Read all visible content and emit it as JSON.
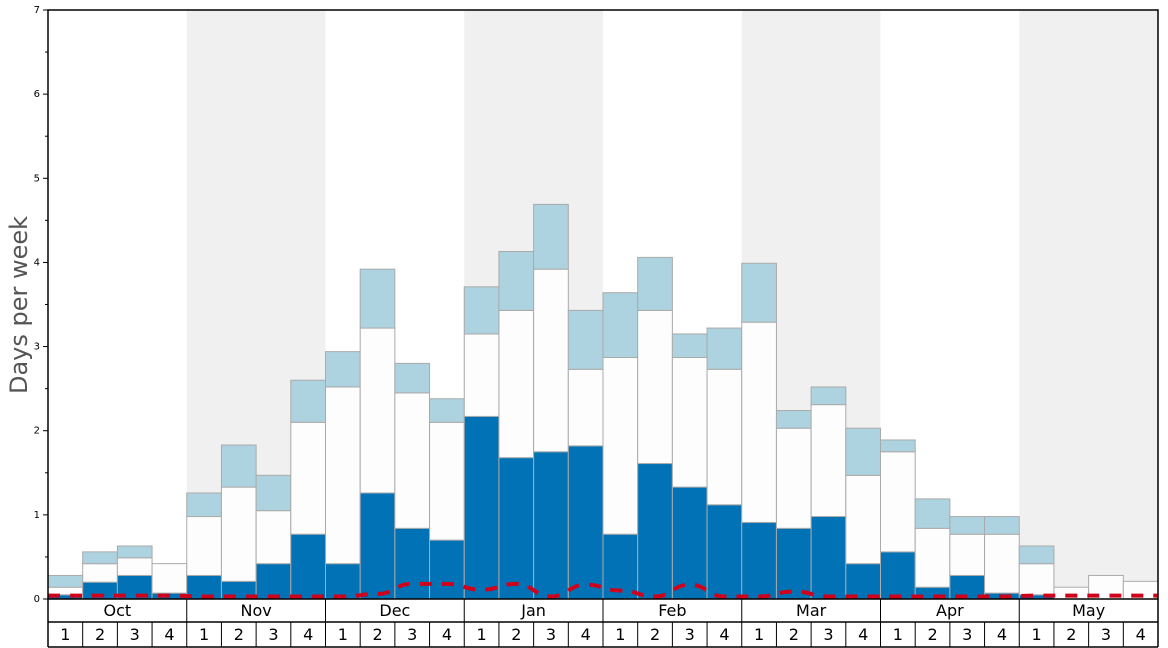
{
  "chart_data": {
    "type": "bar",
    "stacked": true,
    "ylabel": "Days per week",
    "ylim": [
      0,
      7
    ],
    "yticks": [
      0,
      1,
      2,
      3,
      4,
      5,
      6,
      7
    ],
    "grid": false,
    "alternate_month_shading": true,
    "months": [
      "Oct",
      "Nov",
      "Dec",
      "Jan",
      "Feb",
      "Mar",
      "Apr",
      "May"
    ],
    "weeks_per_month": [
      "1",
      "2",
      "3",
      "4"
    ],
    "colors": {
      "dark": "#0072b5",
      "white": "#fdfdfd",
      "light": "#aed3e0",
      "dashed_line": "#d0021b",
      "shade": "#f0f0f1",
      "bar_edge": "#aaaaaa"
    },
    "series": [
      {
        "values": [
          0.05,
          0.2,
          0.28,
          0.07,
          0.28,
          0.21,
          0.42,
          0.77,
          0.42,
          1.26,
          0.84,
          0.7,
          2.17,
          1.68,
          1.75,
          1.82,
          0.77,
          1.61,
          1.33,
          1.12,
          0.91,
          0.84,
          0.98,
          0.42,
          0.56,
          0.14,
          0.28,
          0.07,
          0.05,
          0.0,
          0.0,
          0.0
        ]
      },
      {
        "values": [
          0.09,
          0.22,
          0.21,
          0.35,
          0.7,
          1.12,
          0.63,
          1.33,
          2.1,
          1.96,
          1.61,
          1.4,
          0.98,
          1.75,
          2.17,
          0.91,
          2.1,
          1.82,
          1.54,
          1.61,
          2.38,
          1.19,
          1.33,
          1.05,
          1.19,
          0.7,
          0.49,
          0.7,
          0.37,
          0.14,
          0.28,
          0.21
        ]
      },
      {
        "values": [
          0.14,
          0.14,
          0.14,
          0.0,
          0.28,
          0.5,
          0.42,
          0.5,
          0.42,
          0.7,
          0.35,
          0.28,
          0.56,
          0.7,
          0.77,
          0.7,
          0.77,
          0.63,
          0.28,
          0.49,
          0.7,
          0.21,
          0.21,
          0.56,
          0.14,
          0.35,
          0.21,
          0.21,
          0.21,
          0.0,
          0.0,
          0.0
        ]
      },
      {
        "type": "line",
        "dashed": true,
        "values": [
          0.04,
          0.04,
          0.04,
          0.04,
          0.03,
          0.03,
          0.03,
          0.03,
          0.03,
          0.06,
          0.18,
          0.18,
          0.11,
          0.18,
          0.03,
          0.17,
          0.1,
          0.03,
          0.17,
          0.03,
          0.03,
          0.09,
          0.03,
          0.03,
          0.03,
          0.03,
          0.03,
          0.03,
          0.04,
          0.04,
          0.04,
          0.04
        ]
      }
    ]
  }
}
